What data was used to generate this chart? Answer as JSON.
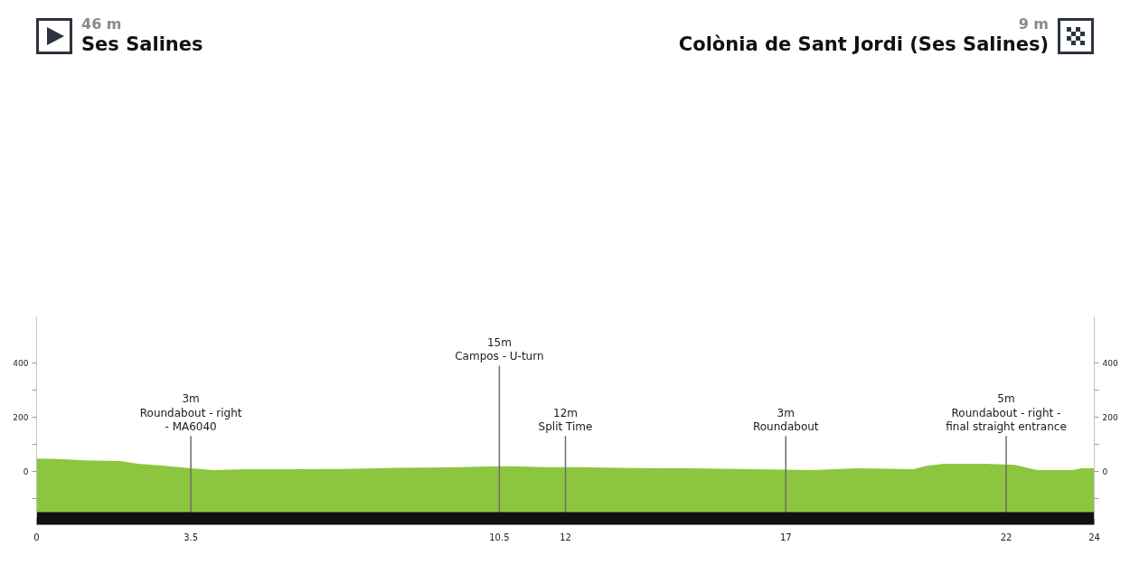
{
  "chart_data": {
    "type": "area",
    "x": [
      0,
      0.5,
      1.1,
      1.9,
      2.3,
      2.9,
      3.5,
      4.0,
      4.8,
      5.7,
      7.0,
      8.2,
      9.4,
      10.3,
      10.8,
      11.5,
      12.3,
      13.5,
      14.8,
      16.6,
      17.6,
      18.6,
      19.3,
      19.9,
      20.2,
      20.6,
      21.5,
      22.2,
      22.7,
      23.5,
      23.7,
      24
    ],
    "series": [
      {
        "color": "#8cc63e",
        "values": [
          46,
          45,
          40,
          37,
          27,
          20,
          10,
          4,
          7,
          7,
          8,
          12,
          14,
          17,
          18,
          15,
          15,
          11,
          10,
          6,
          4,
          10,
          9,
          7,
          20,
          27,
          27,
          23,
          4,
          4,
          10,
          10
        ]
      }
    ],
    "xlim": [
      0,
      24
    ],
    "xticks": [
      0,
      3.5,
      10.5,
      12,
      17,
      22,
      24
    ],
    "ylim": [
      -175,
      570
    ],
    "yticks": [
      {
        "value": -100,
        "label": null
      },
      0,
      {
        "value": 100,
        "label": null
      },
      200,
      {
        "value": 300,
        "label": null
      },
      400
    ],
    "y2lim": [
      -175,
      570
    ],
    "y2ticks": [
      {
        "value": -100,
        "label": null
      },
      0,
      {
        "value": 100,
        "label": null
      },
      200,
      {
        "value": 300,
        "label": null
      },
      400
    ],
    "bands": [
      {
        "axis": "y",
        "from": -175,
        "to": 0,
        "color": "#8cc63e"
      }
    ],
    "ref_lines": [
      {
        "axis": "x",
        "value": 3.5,
        "label": "3m\nRoundabout - right\n- MA6040",
        "color": "#6e6e6e"
      },
      {
        "axis": "x",
        "value": 10.5,
        "label": "15m\nCampos - U-turn",
        "color": "#6e6e6e"
      },
      {
        "axis": "x",
        "value": 12,
        "label": "12m\nSplit Time",
        "color": "#6e6e6e"
      },
      {
        "axis": "x",
        "value": 17,
        "label": "3m\nRoundabout",
        "color": "#6e6e6e"
      },
      {
        "axis": "x",
        "value": 22,
        "label": "5m\nRoundabout - right -\nfinal straight entrance",
        "color": "#6e6e6e"
      }
    ],
    "annotations": [
      "46 m\nSes Salines",
      "9 m\nColònia de Sant Jordi (Ses Salines)"
    ]
  }
}
